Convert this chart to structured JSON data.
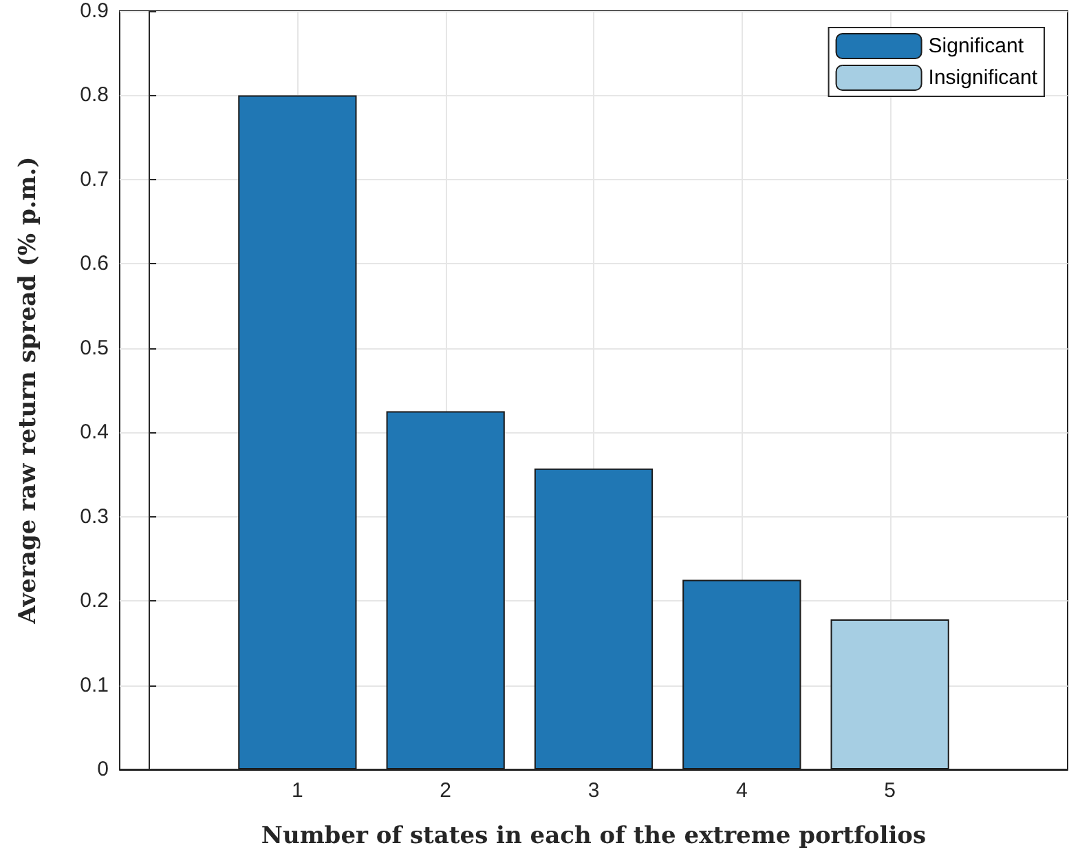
{
  "chart_data": {
    "type": "bar",
    "xlabel": "Number of states in each of the extreme portfolios",
    "ylabel": "Average raw return spread (% p.m.)",
    "x": [
      1,
      2,
      3,
      4,
      5
    ],
    "series": [
      {
        "name": "Significant",
        "color": "#2077b4",
        "values": [
          0.8,
          0.425,
          0.357,
          0.225,
          null
        ]
      },
      {
        "name": "Insignificant",
        "color": "#a6cee3",
        "values": [
          null,
          null,
          null,
          null,
          0.178
        ]
      }
    ],
    "xlim": [
      -0.2,
      6.2
    ],
    "xticks": [
      1,
      2,
      3,
      4,
      5
    ],
    "ylim": [
      0,
      0.9
    ],
    "yticks": [
      0,
      0.1,
      0.2,
      0.3,
      0.4,
      0.5,
      0.6,
      0.7,
      0.8,
      0.9
    ],
    "grid": true,
    "legend": "top right"
  }
}
